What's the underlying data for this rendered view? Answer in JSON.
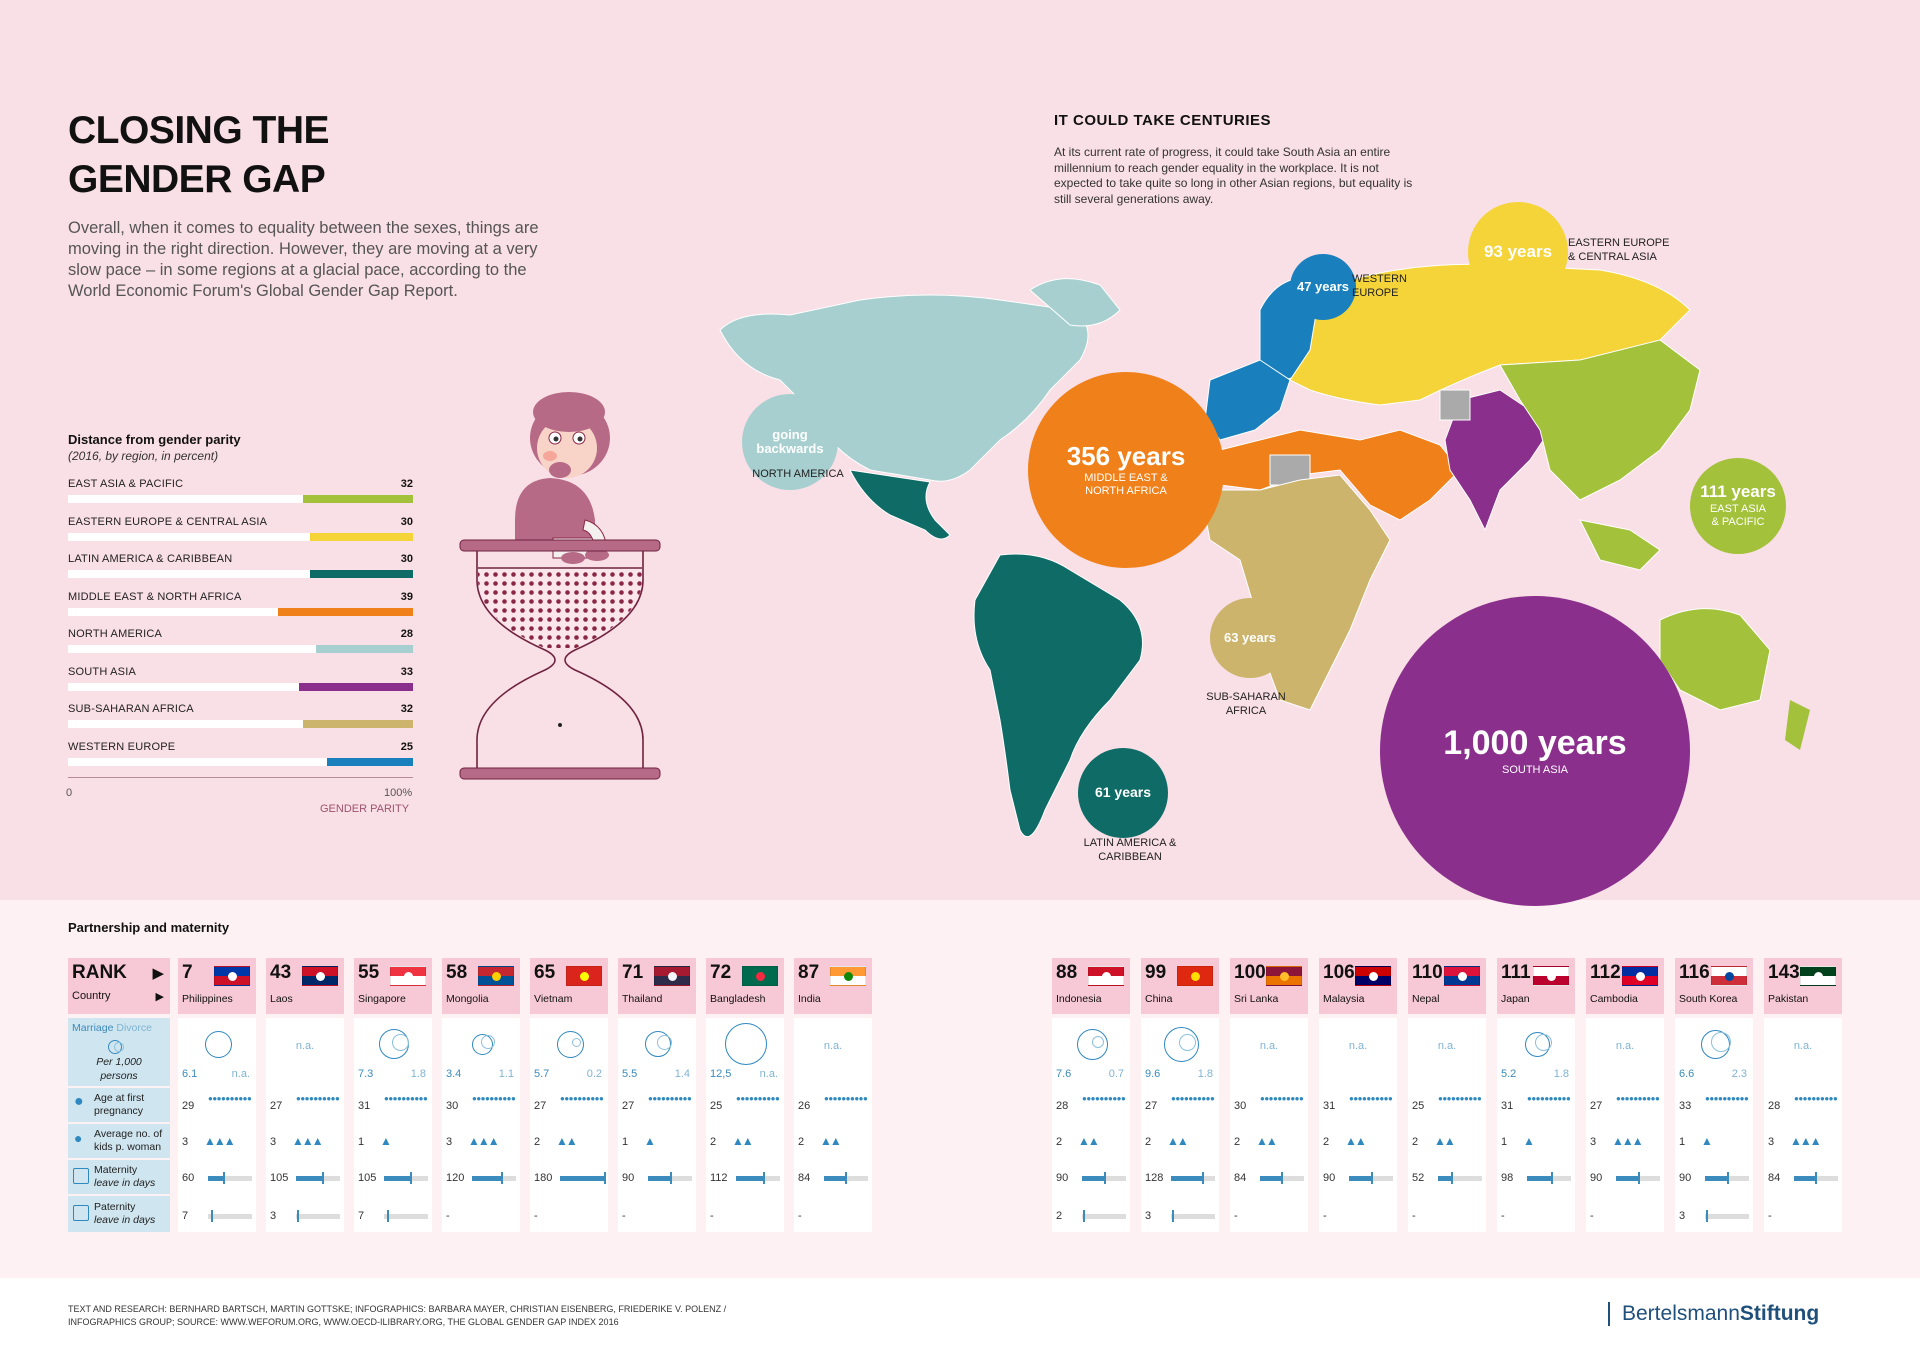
{
  "header": {
    "title_line1": "CLOSING THE",
    "title_line2": "GENDER GAP",
    "intro": "Overall, when it comes to equality between the sexes, things are moving in the right direction. However, they are moving at a very slow pace – in some regions at a glacial pace, according to the World Economic Forum's Global Gender Gap Report."
  },
  "distance": {
    "title": "Distance from gender parity",
    "subtitle": "(2016, by region, in percent)",
    "axis_start": "0",
    "axis_end": "100%",
    "axis_label": "GENDER PARITY",
    "regions": [
      {
        "label": "EAST ASIA & PACIFIC",
        "value": "32",
        "color": "#a3c13a"
      },
      {
        "label": "EASTERN EUROPE & CENTRAL ASIA",
        "value": "30",
        "color": "#f5d43a"
      },
      {
        "label": "LATIN AMERICA & CARIBBEAN",
        "value": "30",
        "color": "#0e6b66"
      },
      {
        "label": "MIDDLE EAST & NORTH AFRICA",
        "value": "39",
        "color": "#f08019"
      },
      {
        "label": "NORTH AMERICA",
        "value": "28",
        "color": "#a8cfcf"
      },
      {
        "label": "SOUTH ASIA",
        "value": "33",
        "color": "#8a2f8c"
      },
      {
        "label": "SUB-SAHARAN AFRICA",
        "value": "32",
        "color": "#cdb46c"
      },
      {
        "label": "WESTERN EUROPE",
        "value": "25",
        "color": "#1a80bd"
      }
    ]
  },
  "map": {
    "title": "IT COULD TAKE CENTURIES",
    "text": "At its current rate of progress, it could take South Asia an entire millennium to reach gender equality in the workplace. It is not expected to take quite so long in other Asian regions, but equality is still several generations away.",
    "bubbles": [
      {
        "years": "going backwards",
        "label": "NORTH AMERICA",
        "color": "#a8cfcf"
      },
      {
        "years": "356 years",
        "label": "MIDDLE EAST & NORTH AFRICA",
        "color": "#f08019"
      },
      {
        "years": "47 years",
        "label": "WESTERN EUROPE",
        "color": "#1a80bd"
      },
      {
        "years": "93 years",
        "label": "EASTERN EUROPE & CENTRAL ASIA",
        "color": "#f5d43a"
      },
      {
        "years": "111 years",
        "label": "EAST ASIA & PACIFIC",
        "color": "#a3c13a"
      },
      {
        "years": "63 years",
        "label": "SUB-SAHARAN AFRICA",
        "color": "#cdb46c"
      },
      {
        "years": "61 years",
        "label": "LATIN AMERICA & CARIBBEAN",
        "color": "#0e6b66"
      },
      {
        "years": "1,000 years",
        "label": "SOUTH ASIA",
        "color": "#8a2f8c"
      }
    ]
  },
  "partnership": {
    "title": "Partnership and maternity",
    "legend": {
      "rank": "RANK",
      "country": "Country",
      "marriage": "Marriage",
      "divorce": "Divorce",
      "per": "Per 1,000",
      "persons": "persons",
      "age_line1": "Age at first",
      "age_line2": "pregnancy",
      "kids_line1": "Average no. of",
      "kids_line2": "kids p. woman",
      "maternity_line1": "Maternity",
      "maternity_line2": "leave in days",
      "paternity_line1": "Paternity",
      "paternity_line2": "leave in days"
    },
    "countries": [
      {
        "rank": "7",
        "name": "Philippines",
        "marriage": "6.1",
        "divorce": "n.a.",
        "age": "29",
        "kids": "3",
        "maternity": "60",
        "paternity": "7",
        "flag": [
          "#0038a8",
          "#ce1126",
          "#ffffff"
        ]
      },
      {
        "rank": "43",
        "name": "Laos",
        "marriage": "",
        "divorce": "",
        "na": "n.a.",
        "age": "27",
        "kids": "3",
        "maternity": "105",
        "paternity": "3",
        "flag": [
          "#ce1126",
          "#002868",
          "#ffffff"
        ]
      },
      {
        "rank": "55",
        "name": "Singapore",
        "marriage": "7.3",
        "divorce": "1.8",
        "age": "31",
        "kids": "1",
        "maternity": "105",
        "paternity": "7",
        "flag": [
          "#ef3340",
          "#ffffff",
          "#ffffff"
        ]
      },
      {
        "rank": "58",
        "name": "Mongolia",
        "marriage": "3.4",
        "divorce": "1.1",
        "age": "30",
        "kids": "3",
        "maternity": "120",
        "paternity": "-",
        "flag": [
          "#c4272f",
          "#015197",
          "#f9cf02"
        ]
      },
      {
        "rank": "65",
        "name": "Vietnam",
        "marriage": "5.7",
        "divorce": "0.2",
        "age": "27",
        "kids": "2",
        "maternity": "180",
        "paternity": "-",
        "flag": [
          "#da251d",
          "#da251d",
          "#ffff00"
        ]
      },
      {
        "rank": "71",
        "name": "Thailand",
        "marriage": "5.5",
        "divorce": "1.4",
        "age": "27",
        "kids": "1",
        "maternity": "90",
        "paternity": "-",
        "flag": [
          "#a51931",
          "#2d2a4a",
          "#f4f5f8"
        ]
      },
      {
        "rank": "72",
        "name": "Bangladesh",
        "marriage": "12,5",
        "divorce": "n.a.",
        "age": "25",
        "kids": "2",
        "maternity": "112",
        "paternity": "-",
        "flag": [
          "#006a4e",
          "#006a4e",
          "#f42a41"
        ]
      },
      {
        "rank": "87",
        "name": "India",
        "marriage": "",
        "divorce": "",
        "na": "n.a.",
        "age": "26",
        "kids": "2",
        "maternity": "84",
        "paternity": "-",
        "flag": [
          "#ff9933",
          "#ffffff",
          "#138808"
        ]
      },
      {
        "rank": "88",
        "name": "Indonesia",
        "marriage": "7.6",
        "divorce": "0.7",
        "age": "28",
        "kids": "2",
        "maternity": "90",
        "paternity": "2",
        "flag": [
          "#ce1126",
          "#ffffff",
          "#ffffff"
        ]
      },
      {
        "rank": "99",
        "name": "China",
        "marriage": "9.6",
        "divorce": "1.8",
        "age": "27",
        "kids": "2",
        "maternity": "128",
        "paternity": "3",
        "flag": [
          "#de2910",
          "#de2910",
          "#ffde00"
        ]
      },
      {
        "rank": "100",
        "name": "Sri Lanka",
        "marriage": "",
        "divorce": "",
        "na": "n.a.",
        "age": "30",
        "kids": "2",
        "maternity": "84",
        "paternity": "-",
        "flag": [
          "#8d153a",
          "#eb7400",
          "#ffbe29"
        ]
      },
      {
        "rank": "106",
        "name": "Malaysia",
        "marriage": "",
        "divorce": "",
        "na": "n.a.",
        "age": "31",
        "kids": "2",
        "maternity": "90",
        "paternity": "-",
        "flag": [
          "#cc0001",
          "#010066",
          "#ffffff"
        ]
      },
      {
        "rank": "110",
        "name": "Nepal",
        "marriage": "",
        "divorce": "",
        "na": "n.a.",
        "age": "25",
        "kids": "2",
        "maternity": "52",
        "paternity": "-",
        "flag": [
          "#dc143c",
          "#003893",
          "#ffffff"
        ]
      },
      {
        "rank": "111",
        "name": "Japan",
        "marriage": "5.2",
        "divorce": "1.8",
        "age": "31",
        "kids": "1",
        "maternity": "98",
        "paternity": "-",
        "flag": [
          "#ffffff",
          "#bc002d",
          "#ffffff"
        ]
      },
      {
        "rank": "112",
        "name": "Cambodia",
        "marriage": "",
        "divorce": "",
        "na": "n.a.",
        "age": "27",
        "kids": "3",
        "maternity": "90",
        "paternity": "-",
        "flag": [
          "#032ea1",
          "#e00025",
          "#ffffff"
        ]
      },
      {
        "rank": "116",
        "name": "South Korea",
        "marriage": "6.6",
        "divorce": "2.3",
        "age": "33",
        "kids": "1",
        "maternity": "90",
        "paternity": "3",
        "flag": [
          "#ffffff",
          "#cd2e3a",
          "#0047a0"
        ]
      },
      {
        "rank": "143",
        "name": "Pakistan",
        "marriage": "",
        "divorce": "",
        "na": "n.a.",
        "age": "28",
        "kids": "3",
        "maternity": "84",
        "paternity": "-",
        "flag": [
          "#01411c",
          "#ffffff",
          "#ffffff"
        ]
      }
    ]
  },
  "footer": {
    "credits_line1": "TEXT AND RESEARCH: BERNHARD BARTSCH, MARTIN GOTTSKE; INFOGRAPHICS: BARBARA MAYER, CHRISTIAN EISENBERG, FRIEDERIKE V. POLENZ /",
    "credits_line2": "INFOGRAPHICS GROUP; SOURCE: WWW.WEFORUM.ORG, WWW.OECD-ILIBRARY.ORG, THE GLOBAL GENDER GAP INDEX 2016",
    "brand_light": "Bertelsmann",
    "brand_bold": "Stiftung"
  }
}
